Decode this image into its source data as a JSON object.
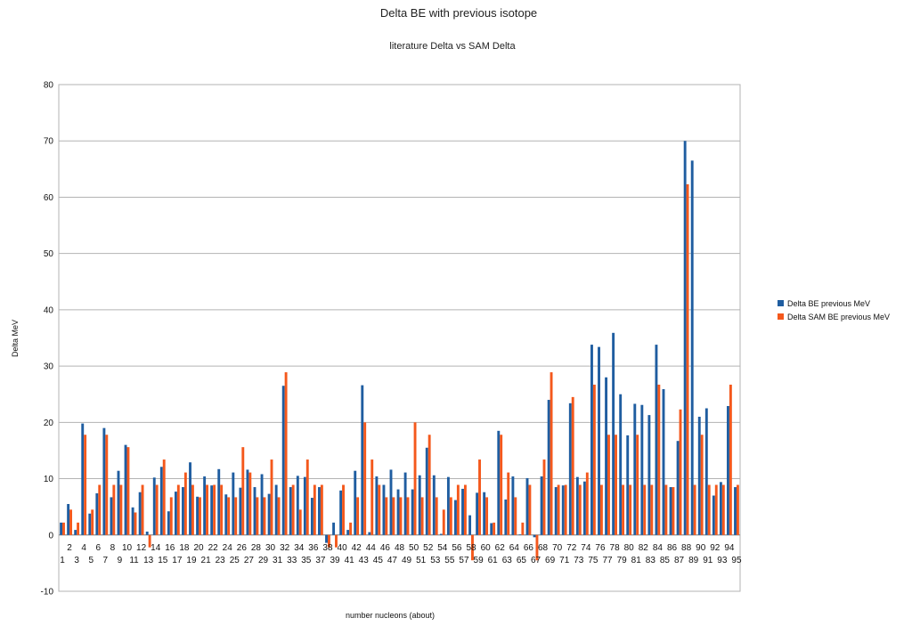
{
  "chart_data": {
    "type": "bar",
    "title": "Delta BE with previous isotope",
    "subtitle": "literature Delta vs SAM Delta",
    "xlabel": "number nucleons (about)",
    "ylabel": "Delta MeV",
    "ylim": [
      -10,
      80
    ],
    "yticks": [
      "-10",
      "0",
      "10",
      "20",
      "30",
      "40",
      "50",
      "60",
      "70",
      "80"
    ],
    "grid": true,
    "legend_position": "right",
    "categories": [
      "1",
      "2",
      "3",
      "4",
      "5",
      "6",
      "7",
      "8",
      "9",
      "10",
      "11",
      "12",
      "13",
      "14",
      "15",
      "16",
      "17",
      "18",
      "19",
      "20",
      "21",
      "22",
      "23",
      "24",
      "25",
      "26",
      "27",
      "28",
      "29",
      "30",
      "31",
      "32",
      "33",
      "34",
      "35",
      "36",
      "37",
      "38",
      "39",
      "40",
      "41",
      "42",
      "43",
      "44",
      "45",
      "46",
      "47",
      "48",
      "49",
      "50",
      "51",
      "52",
      "53",
      "54",
      "55",
      "56",
      "57",
      "58",
      "59",
      "60",
      "61",
      "62",
      "63",
      "64",
      "65",
      "66",
      "67",
      "68",
      "69",
      "70",
      "71",
      "72",
      "73",
      "74",
      "75",
      "76",
      "77",
      "78",
      "79",
      "80",
      "81",
      "82",
      "83",
      "84",
      "85",
      "86",
      "87",
      "88",
      "89",
      "90",
      "91",
      "92",
      "93",
      "94",
      "95"
    ],
    "series": [
      {
        "name": "Delta BE previous MeV",
        "color": "#1f5da0",
        "values": [
          2.2,
          5.5,
          0.9,
          19.8,
          3.8,
          7.4,
          19.0,
          6.7,
          11.4,
          16.0,
          4.9,
          7.6,
          0.6,
          10.2,
          12.1,
          4.2,
          7.7,
          8.5,
          12.9,
          6.8,
          10.4,
          8.8,
          11.7,
          7.2,
          11.1,
          8.4,
          11.6,
          8.5,
          10.8,
          7.3,
          8.9,
          26.5,
          8.5,
          10.5,
          10.3,
          6.6,
          8.5,
          -1.4,
          2.2,
          7.9,
          0.9,
          11.4,
          26.6,
          0.5,
          10.4,
          8.9,
          11.6,
          8.1,
          11.1,
          8.1,
          10.6,
          15.5,
          10.6,
          0.2,
          10.3,
          6.2,
          8.2,
          3.5,
          7.5,
          7.6,
          2.1,
          18.5,
          6.3,
          10.4,
          0.1,
          10.1,
          -0.4,
          10.4,
          24.0,
          8.5,
          8.8,
          23.4,
          10.3,
          9.5,
          33.8,
          33.4,
          28.0,
          35.9,
          25.0,
          17.7,
          23.3,
          23.1,
          21.3,
          33.8,
          25.9,
          8.5,
          16.7,
          70.0,
          66.5,
          21.0,
          22.5,
          7.0,
          9.4,
          22.9,
          8.5
        ]
      },
      {
        "name": "Delta SAM BE previous MeV",
        "color": "#f4581c",
        "values": [
          2.2,
          4.5,
          2.2,
          17.8,
          4.5,
          8.9,
          17.8,
          8.9,
          8.9,
          15.6,
          4.0,
          8.9,
          -2.2,
          8.9,
          13.4,
          6.7,
          8.9,
          11.1,
          8.9,
          6.7,
          8.9,
          8.9,
          8.9,
          6.7,
          6.7,
          15.6,
          11.1,
          6.7,
          6.7,
          13.4,
          6.7,
          28.9,
          8.9,
          4.5,
          13.4,
          8.9,
          8.9,
          -2.2,
          -2.2,
          8.9,
          2.2,
          6.7,
          20.0,
          13.4,
          8.9,
          6.7,
          6.7,
          6.7,
          6.7,
          20.0,
          6.7,
          17.8,
          6.7,
          4.5,
          6.7,
          8.9,
          8.9,
          -4.5,
          13.4,
          6.7,
          2.2,
          17.8,
          11.1,
          6.7,
          2.2,
          8.9,
          -4.5,
          13.4,
          28.9,
          8.9,
          8.9,
          24.5,
          8.9,
          11.1,
          26.7,
          8.9,
          17.8,
          17.8,
          8.9,
          8.9,
          17.8,
          8.9,
          8.9,
          26.7,
          8.9,
          8.5,
          22.3,
          62.3,
          8.9,
          17.8,
          8.9,
          8.9,
          8.9,
          26.7,
          8.9
        ]
      }
    ]
  }
}
